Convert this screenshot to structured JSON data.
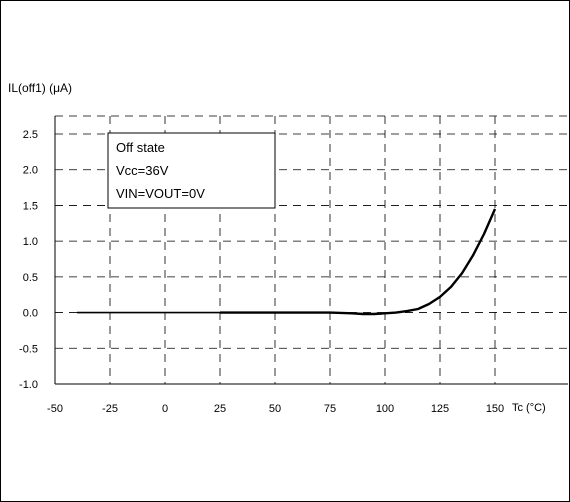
{
  "chart_data": {
    "type": "line",
    "ylabel": "IL(off1)  (μA)",
    "xlabel": "Tc (°C)",
    "xlim": [
      -50,
      150
    ],
    "ylim": [
      -1.0,
      2.5
    ],
    "x_ticks": [
      "-50",
      "-25",
      "0",
      "25",
      "50",
      "75",
      "100",
      "125",
      "150"
    ],
    "y_ticks": [
      "2.5",
      "2.0",
      "1.5",
      "1.0",
      "0.5",
      "0.0",
      "-0.5",
      "-1.0"
    ],
    "x_tick_values": [
      -50,
      -25,
      0,
      25,
      50,
      75,
      100,
      125,
      150
    ],
    "y_tick_values": [
      2.5,
      2.0,
      1.5,
      1.0,
      0.5,
      0.0,
      -0.5,
      -1.0
    ],
    "grid": true,
    "grid_style": "dashed",
    "legend": {
      "position": "top-left",
      "lines": [
        "Off state",
        "Vcc=36V",
        "VIN=VOUT=0V"
      ]
    },
    "series": [
      {
        "x": [
          -40,
          -25,
          0,
          25,
          50,
          75,
          85,
          90,
          95,
          100,
          105,
          110,
          115,
          120,
          125,
          130,
          135,
          140,
          145,
          150
        ],
        "values": [
          0.0,
          0.0,
          0.0,
          0.0,
          0.0,
          0.0,
          -0.01,
          -0.02,
          -0.02,
          -0.01,
          0.0,
          0.02,
          0.05,
          0.12,
          0.22,
          0.36,
          0.55,
          0.8,
          1.1,
          1.45
        ]
      }
    ]
  }
}
